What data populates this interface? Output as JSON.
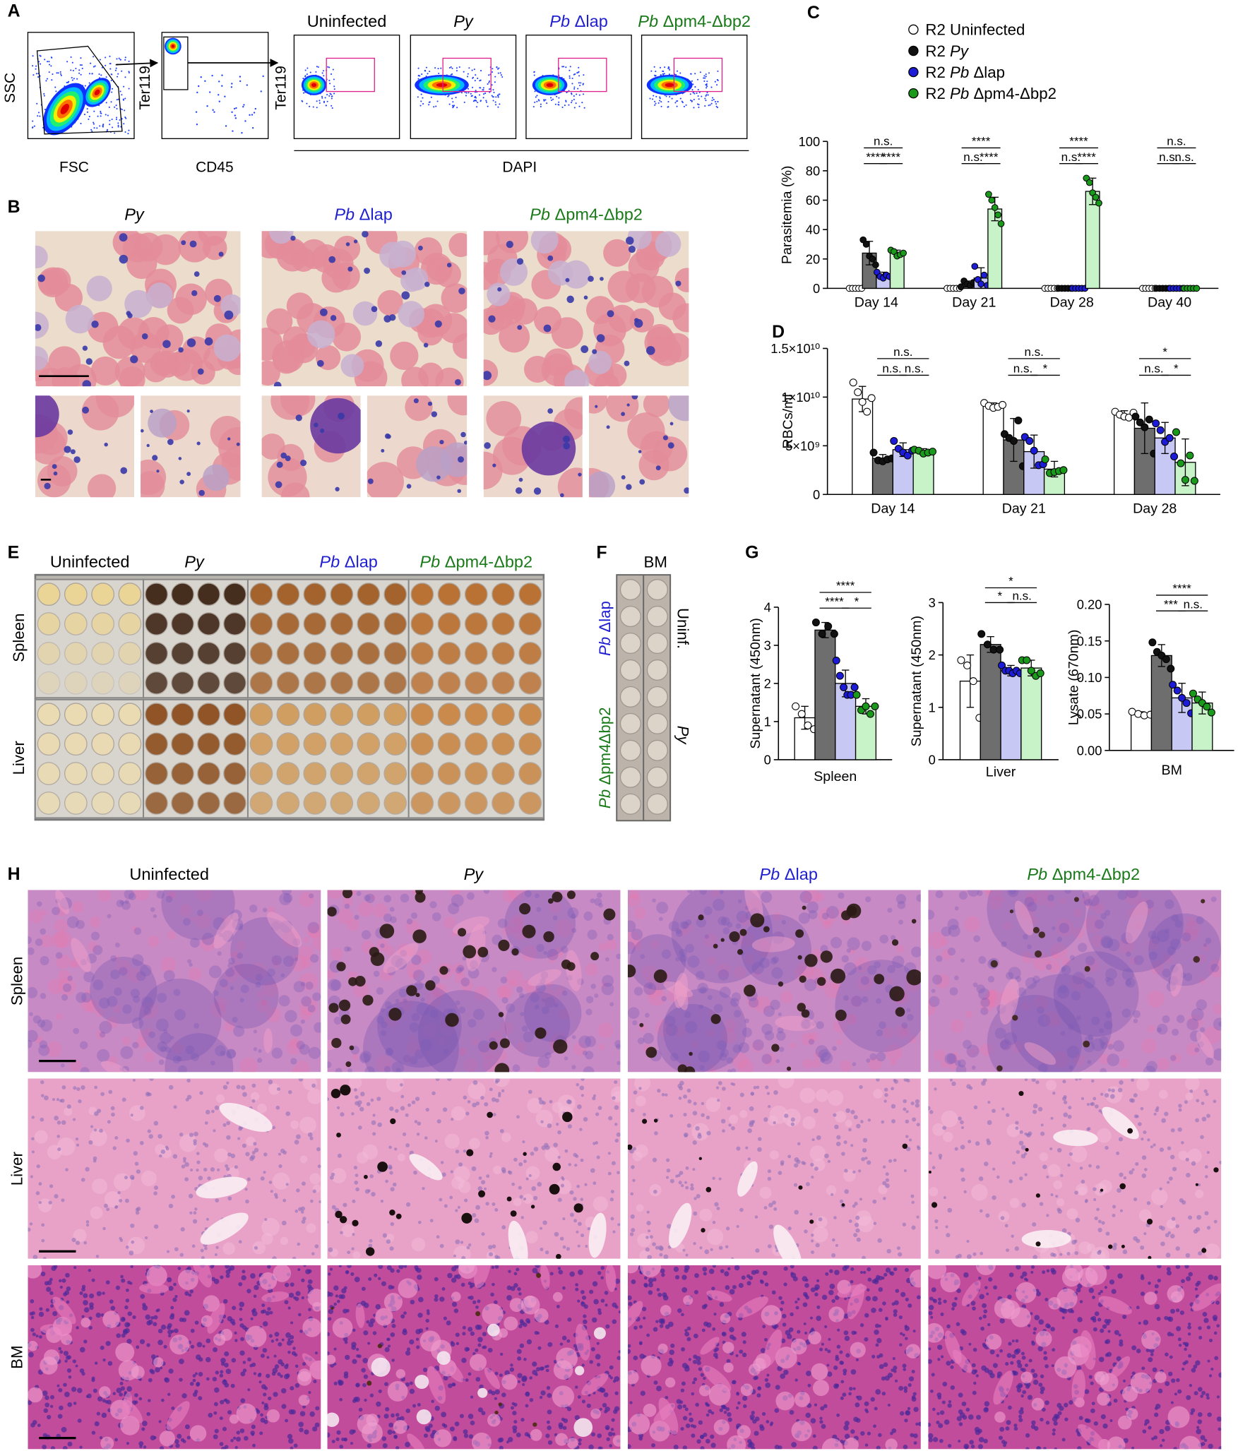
{
  "groups": [
    {
      "text": "Uninfected",
      "color": "#000000"
    },
    {
      "species": "Py",
      "color": "#000000"
    },
    {
      "species": "Pb",
      "strain": "Δlap",
      "color": "#1f1fd0"
    },
    {
      "species": "Pb",
      "strain": "Δpm4-Δbp2",
      "color": "#1a7a1a"
    }
  ],
  "panel_a": {
    "label": "A",
    "scatter_1": {
      "x": "FSC",
      "y": "SSC"
    },
    "scatter_2": {
      "x": "CD45",
      "y": "Ter119"
    },
    "histograms": {
      "x": "DAPI",
      "y": "Ter119"
    }
  },
  "panel_b": {
    "label": "B"
  },
  "panel_c": {
    "label": "C"
  },
  "panel_d": {
    "label": "D"
  },
  "panel_e": {
    "label": "E",
    "rows": [
      "Spleen",
      "Liver"
    ]
  },
  "panel_f": {
    "label": "F",
    "title": "BM",
    "left": [
      {
        "species": "Pb",
        "strain": "Δlap",
        "color": "#1f1fd0"
      },
      {
        "species": "Pb",
        "strain": "Δpm4Δbp2",
        "color": "#1a7a1a"
      }
    ],
    "right": [
      "Uninf.",
      "Py"
    ]
  },
  "panel_g": {
    "label": "G"
  },
  "panel_h": {
    "label": "H",
    "rows": [
      "Spleen",
      "Liver",
      "BM"
    ]
  },
  "chart_data": [
    {
      "type": "bar",
      "ylabel": "Parasitemia (%)",
      "categories": [
        "Day 14",
        "Day 21",
        "Day 28",
        "Day 40"
      ],
      "ylim": [
        0,
        100
      ],
      "yticks": [
        0,
        20,
        40,
        60,
        80,
        100
      ],
      "series": [
        {
          "name": {
            "prefix": "R2",
            "text": "Uninfected"
          },
          "color": "#ffffff",
          "point_color": "#ffffff",
          "values": [
            0,
            0,
            0,
            0
          ],
          "errors": [
            0,
            0,
            0,
            0
          ],
          "points": [
            [
              0,
              0,
              0,
              0,
              0
            ],
            [
              0,
              0,
              0,
              0,
              0
            ],
            [
              0,
              0,
              0,
              0,
              0
            ],
            [
              0,
              0,
              0,
              0,
              0
            ]
          ]
        },
        {
          "name": {
            "prefix": "R2",
            "species": "Py"
          },
          "color": "#6e6e6e",
          "point_color": "#111111",
          "values": [
            24,
            3,
            0,
            0
          ],
          "errors": [
            8,
            2,
            0,
            0
          ],
          "points": [
            [
              33,
              30,
              22,
              20,
              16
            ],
            [
              1,
              5,
              3,
              2,
              4
            ],
            [
              0,
              0,
              0,
              0,
              0
            ],
            [
              0,
              0,
              0,
              0,
              0
            ]
          ]
        },
        {
          "name": {
            "prefix": "R2",
            "species": "Pb",
            "strain": "Δlap"
          },
          "color": "#c8c8f4",
          "point_color": "#1c1cd8",
          "values": [
            9,
            7,
            0,
            0
          ],
          "errors": [
            2,
            7,
            0,
            0
          ],
          "points": [
            [
              11,
              8,
              7,
              9,
              8
            ],
            [
              15,
              6,
              3,
              9,
              2
            ],
            [
              0,
              0,
              0,
              0,
              0
            ],
            [
              0,
              0,
              0,
              0,
              0
            ]
          ]
        },
        {
          "name": {
            "prefix": "R2",
            "species": "Pb",
            "strain": "Δpm4-Δbp2"
          },
          "color": "#c8f2c8",
          "point_color": "#1a9a1a",
          "values": [
            24,
            54,
            66,
            0
          ],
          "errors": [
            2,
            8,
            9,
            0
          ],
          "points": [
            [
              26,
              25,
              22,
              23,
              24
            ],
            [
              64,
              60,
              55,
              50,
              44
            ],
            [
              75,
              72,
              65,
              62,
              58
            ],
            [
              0,
              0,
              0,
              0,
              0
            ]
          ]
        }
      ],
      "significance": [
        [
          "n.s.",
          "****",
          "****"
        ],
        [
          "****",
          "n.s.",
          "****"
        ],
        [
          "****",
          "n.s.",
          "****"
        ],
        [
          "n.s.",
          "n.s.",
          "n.s."
        ]
      ]
    },
    {
      "type": "bar",
      "ylabel": "RBCs/ml",
      "categories": [
        "Day 14",
        "Day 21",
        "Day 28"
      ],
      "ylim": [
        0,
        15000000000.0
      ],
      "yticks": [
        0,
        {
          "value": 5000000000.0,
          "label": "5×10⁹"
        },
        {
          "value": 10000000000.0,
          "label": "1×10¹⁰"
        },
        {
          "value": 15000000000.0,
          "label": "1.5×10¹⁰"
        }
      ],
      "series": [
        {
          "color": "#ffffff",
          "point_color": "#ffffff",
          "values": [
            9800000000.0,
            9100000000.0,
            8200000000.0
          ],
          "errors": [
            1300000000.0,
            300000000.0,
            400000000.0
          ],
          "points": [
            [
              11500000000.0,
              10500000000.0,
              9500000000.0,
              8500000000.0,
              9900000000.0
            ],
            [
              9400000000.0,
              9100000000.0,
              8900000000.0,
              9000000000.0,
              9200000000.0
            ],
            [
              8500000000.0,
              8200000000.0,
              8000000000.0,
              7900000000.0,
              8400000000.0
            ]
          ]
        },
        {
          "color": "#6e6e6e",
          "point_color": "#111111",
          "values": [
            3700000000.0,
            5600000000.0,
            6800000000.0
          ],
          "errors": [
            400000000.0,
            2200000000.0,
            2600000000.0
          ],
          "points": [
            [
              4300000000.0,
              3500000000.0,
              3400000000.0,
              3600000000.0,
              3700000000.0
            ],
            [
              6200000000.0,
              5800000000.0,
              5500000000.0,
              7600000000.0,
              2900000000.0
            ],
            [
              8000000000.0,
              7400000000.0,
              6900000000.0,
              7700000000.0,
              4200000000.0
            ]
          ]
        },
        {
          "color": "#c8c8f4",
          "point_color": "#1c1cd8",
          "values": [
            4600000000.0,
            4400000000.0,
            5800000000.0
          ],
          "errors": [
            700000000.0,
            1700000000.0,
            1600000000.0
          ],
          "points": [
            [
              5500000000.0,
              4700000000.0,
              4300000000.0,
              4000000000.0,
              4500000000.0
            ],
            [
              5900000000.0,
              5500000000.0,
              4500000000.0,
              3000000000.0,
              3100000000.0
            ],
            [
              7300000000.0,
              6600000000.0,
              5400000000.0,
              5800000000.0,
              3900000000.0
            ]
          ]
        },
        {
          "color": "#c8f2c8",
          "point_color": "#1a9a1a",
          "values": [
            4400000000.0,
            2600000000.0,
            3300000000.0
          ],
          "errors": [
            300000000.0,
            800000000.0,
            2400000000.0
          ],
          "points": [
            [
              4600000000.0,
              4500000000.0,
              4200000000.0,
              4300000000.0,
              4400000000.0
            ],
            [
              3600000000.0,
              2200000000.0,
              2300000000.0,
              2400000000.0,
              2500000000.0
            ],
            [
              6400000000.0,
              3200000000.0,
              1500000000.0,
              4000000000.0,
              1400000000.0
            ]
          ]
        }
      ],
      "significance": [
        [
          "n.s.",
          "n.s.",
          "n.s."
        ],
        [
          "n.s.",
          "n.s.",
          "*"
        ],
        [
          "*",
          "n.s.",
          "*"
        ]
      ]
    },
    {
      "type": "bar",
      "ylabel": "Supernatant (450nm)",
      "categories": [
        "Spleen"
      ],
      "ylim": [
        0,
        4
      ],
      "yticks": [
        0,
        1,
        2,
        3,
        4
      ],
      "series": [
        {
          "color": "#ffffff",
          "point_color": "#ffffff",
          "values": [
            1.1
          ],
          "errors": [
            0.3
          ],
          "points": [
            [
              1.4,
              1.2,
              0.9,
              0.8
            ]
          ]
        },
        {
          "color": "#6e6e6e",
          "point_color": "#111111",
          "values": [
            3.4
          ],
          "errors": [
            0.2
          ],
          "points": [
            [
              3.6,
              3.3,
              3.5,
              3.3
            ]
          ]
        },
        {
          "color": "#c8c8f4",
          "point_color": "#1c1cd8",
          "values": [
            2.0
          ],
          "errors": [
            0.35
          ],
          "points": [
            [
              2.6,
              2.2,
              1.9,
              1.7,
              1.7,
              1.9
            ]
          ]
        },
        {
          "color": "#c8f2c8",
          "point_color": "#1a9a1a",
          "values": [
            1.4
          ],
          "errors": [
            0.2
          ],
          "points": [
            [
              1.7,
              1.3,
              1.4,
              1.2,
              1.4
            ]
          ]
        }
      ],
      "significance": [
        [
          "****",
          "****",
          "*"
        ]
      ]
    },
    {
      "type": "bar",
      "ylabel": "Supernatant (450nm)",
      "categories": [
        "Liver"
      ],
      "ylim": [
        0,
        3
      ],
      "yticks": [
        0,
        1,
        2,
        3
      ],
      "series": [
        {
          "color": "#ffffff",
          "point_color": "#ffffff",
          "values": [
            1.5
          ],
          "errors": [
            0.5
          ],
          "points": [
            [
              1.9,
              1.8,
              1.5,
              0.8
            ]
          ]
        },
        {
          "color": "#6e6e6e",
          "point_color": "#111111",
          "values": [
            2.2
          ],
          "errors": [
            0.15
          ],
          "points": [
            [
              2.4,
              2.2,
              2.1,
              2.1
            ]
          ]
        },
        {
          "color": "#c8c8f4",
          "point_color": "#1c1cd8",
          "values": [
            1.7
          ],
          "errors": [
            0.1
          ],
          "points": [
            [
              1.8,
              1.7,
              1.7,
              1.65,
              1.7,
              1.65
            ]
          ]
        },
        {
          "color": "#c8f2c8",
          "point_color": "#1a9a1a",
          "values": [
            1.75
          ],
          "errors": [
            0.15
          ],
          "points": [
            [
              1.9,
              1.9,
              1.7,
              1.6,
              1.65
            ]
          ]
        }
      ],
      "significance": [
        [
          "*",
          "*",
          "n.s."
        ]
      ]
    },
    {
      "type": "bar",
      "ylabel": "Lysate (670nm)",
      "categories": [
        "BM"
      ],
      "ylim": [
        0,
        0.2
      ],
      "yticks": [
        {
          "value": 0,
          "label": "0.00"
        },
        {
          "value": 0.05,
          "label": "0.05"
        },
        {
          "value": 0.1,
          "label": "0.10"
        },
        {
          "value": 0.15,
          "label": "0.15"
        },
        {
          "value": 0.2,
          "label": "0.20"
        }
      ],
      "series": [
        {
          "color": "#ffffff",
          "point_color": "#ffffff",
          "values": [
            0.05
          ],
          "errors": [
            0.003
          ],
          "points": [
            [
              0.053,
              0.05,
              0.048,
              0.049
            ]
          ]
        },
        {
          "color": "#6e6e6e",
          "point_color": "#111111",
          "values": [
            0.13
          ],
          "errors": [
            0.015
          ],
          "points": [
            [
              0.148,
              0.135,
              0.13,
              0.125,
              0.112
            ]
          ]
        },
        {
          "color": "#c8c8f4",
          "point_color": "#1c1cd8",
          "values": [
            0.072
          ],
          "errors": [
            0.02
          ],
          "points": [
            [
              0.09,
              0.082,
              0.072,
              0.065,
              0.051
            ]
          ]
        },
        {
          "color": "#c8f2c8",
          "point_color": "#1a9a1a",
          "values": [
            0.065
          ],
          "errors": [
            0.015
          ],
          "points": [
            [
              0.078,
              0.07,
              0.065,
              0.06,
              0.052
            ]
          ]
        }
      ],
      "significance": [
        [
          "****",
          "***",
          "n.s."
        ]
      ]
    }
  ]
}
